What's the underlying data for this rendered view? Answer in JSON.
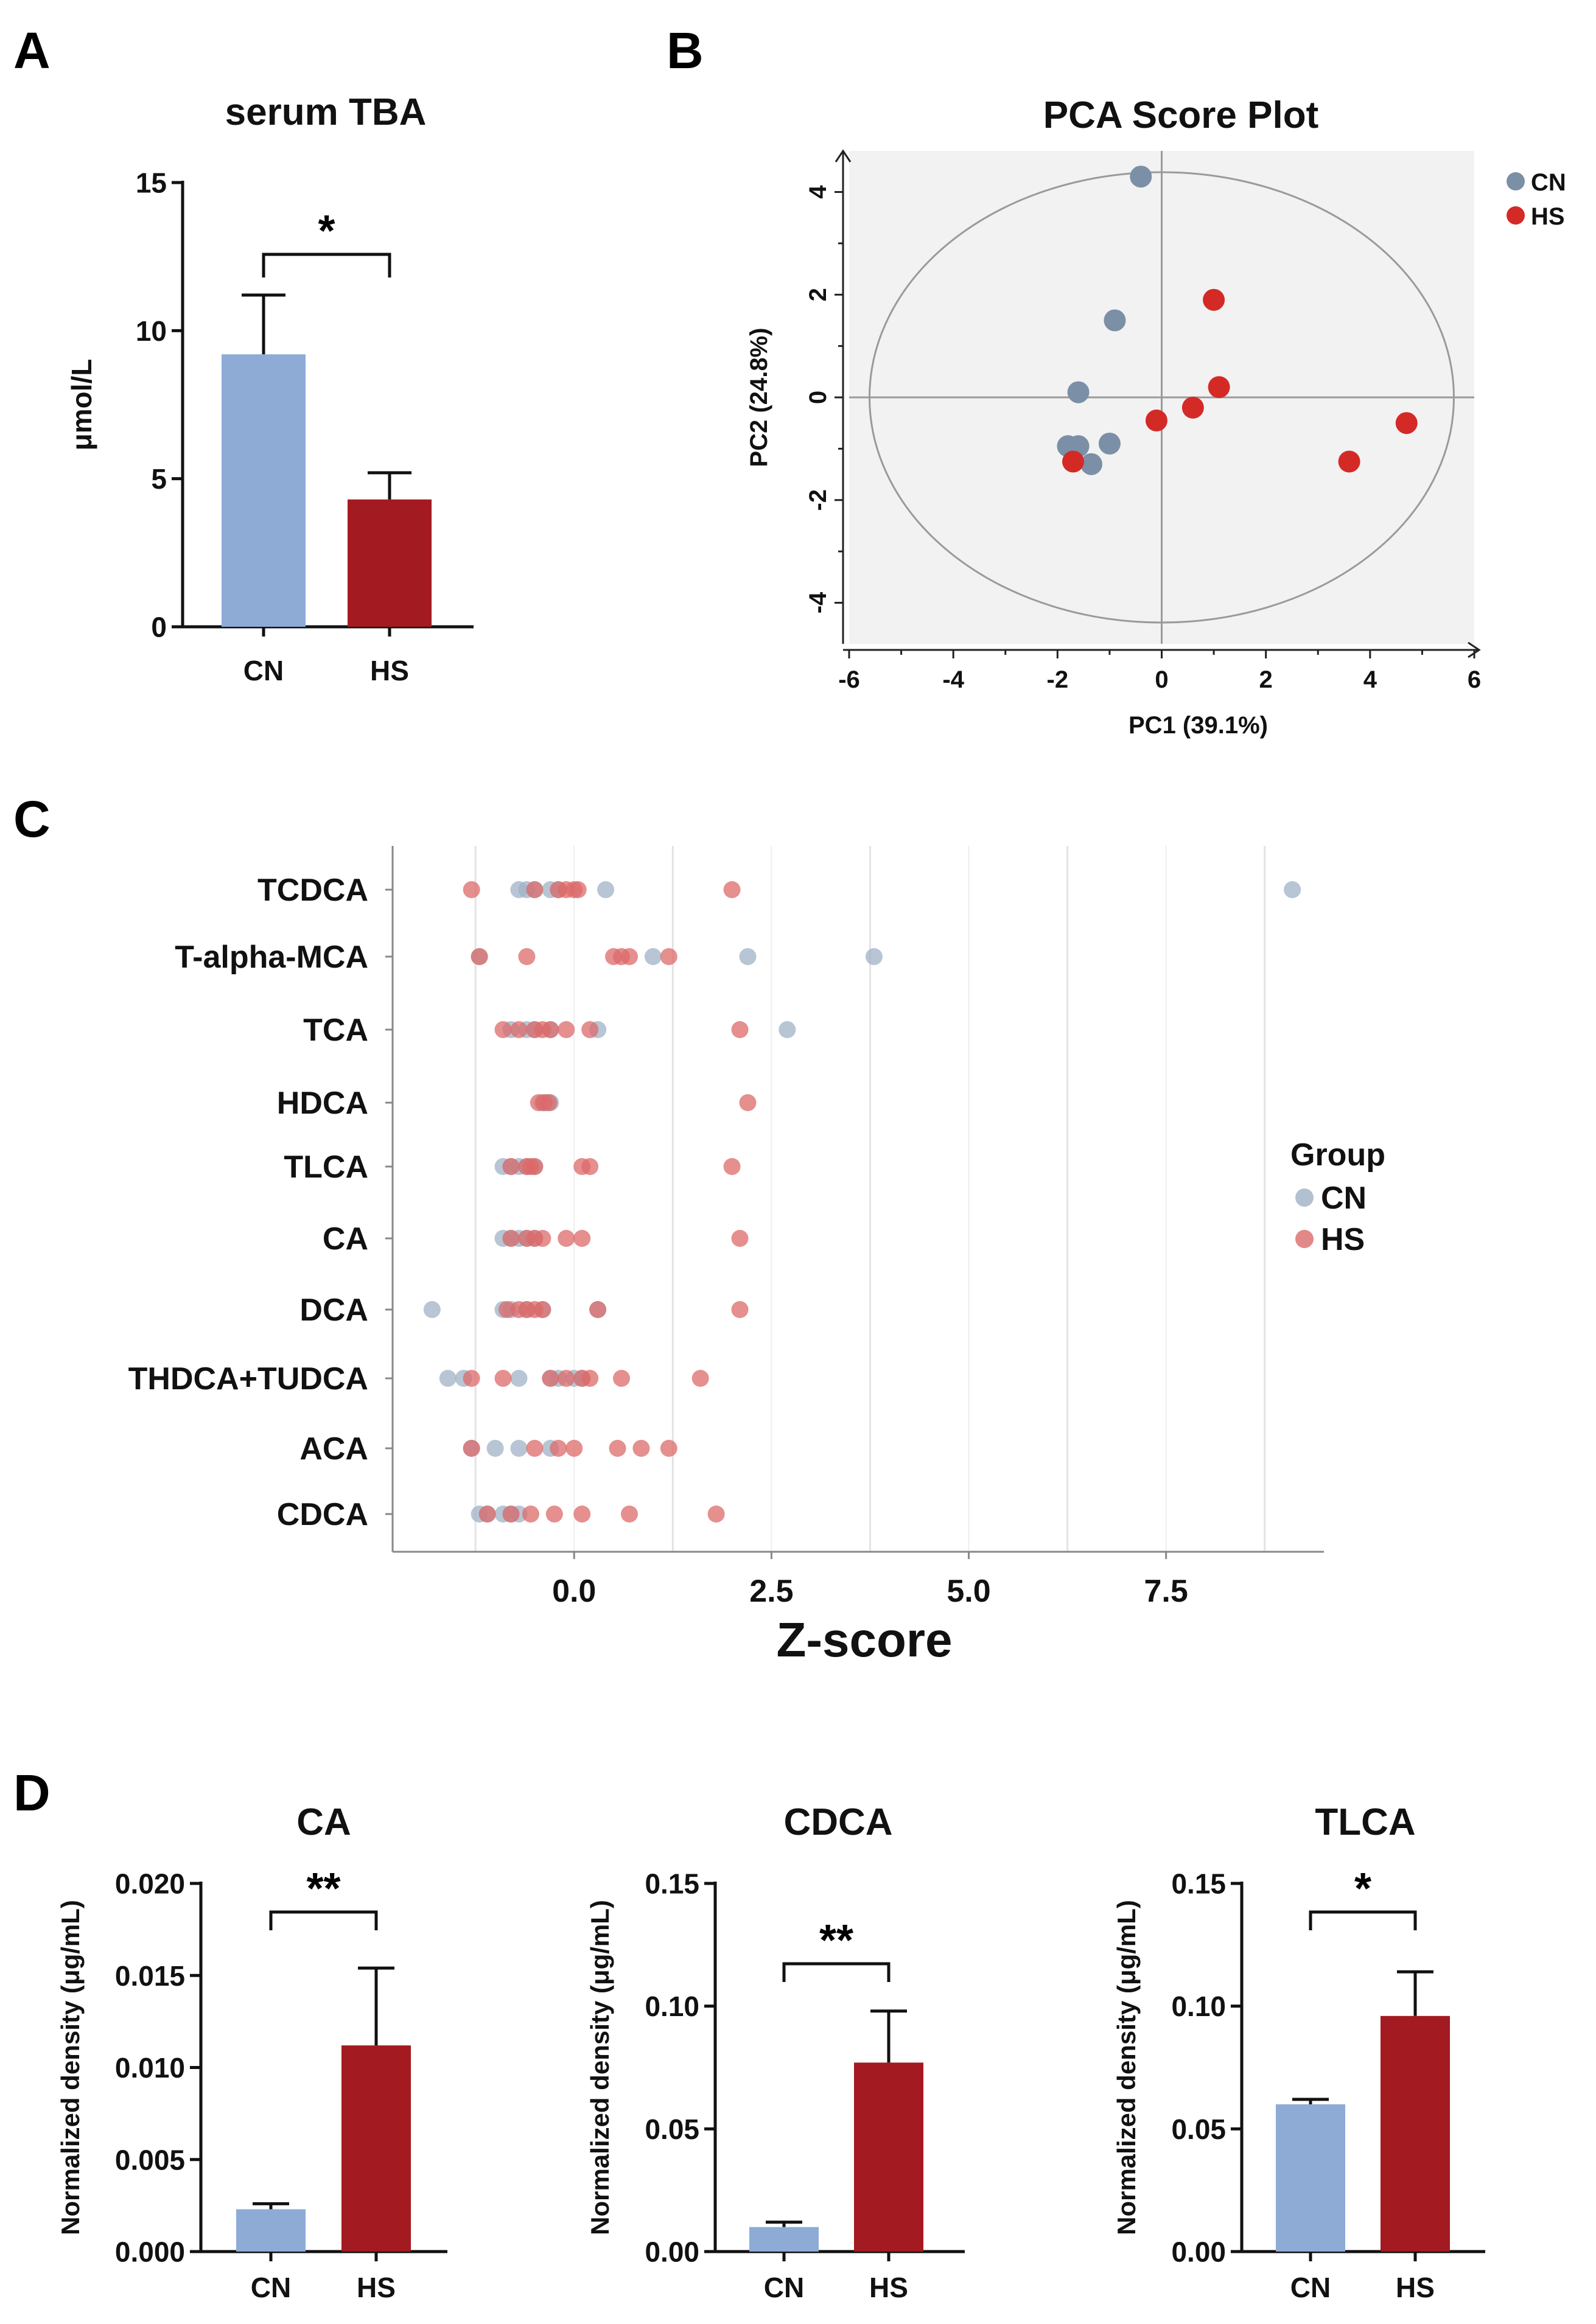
{
  "colors": {
    "cn_bar": "#8eabd6",
    "hs_bar": "#a31a20",
    "pca_cn": "#7b8fa6",
    "pca_hs": "#d42a26",
    "z_cn": "#9fb2c6",
    "z_hs": "#dc6a6a",
    "pca_bg": "#f2f2f2"
  },
  "panels": {
    "a": {
      "label": "A"
    },
    "b": {
      "label": "B"
    },
    "c": {
      "label": "C"
    },
    "d": {
      "label": "D"
    }
  },
  "chart_data": [
    {
      "id": "panel_a",
      "type": "bar",
      "title": "serum TBA",
      "ylabel": "μmol/L",
      "xlabel": "",
      "ylim": [
        0,
        15
      ],
      "yticks": [
        "0",
        "5",
        "10",
        "15"
      ],
      "categories": [
        "CN",
        "HS"
      ],
      "values": [
        9.2,
        4.3
      ],
      "errors": [
        2.0,
        0.9
      ],
      "significance": "*"
    },
    {
      "id": "panel_b",
      "type": "scatter",
      "title": "PCA Score Plot",
      "xlabel": "PC1 (39.1%)",
      "ylabel": "PC2 (24.8%)",
      "xlim": [
        -6,
        6
      ],
      "ylim": [
        -4.8,
        4.8
      ],
      "xticks": [
        "-6",
        "-4",
        "-2",
        "0",
        "2",
        "4",
        "6"
      ],
      "yticks": [
        "-4",
        "-2",
        "0",
        "2",
        "4"
      ],
      "legend": {
        "position": "top-right",
        "entries": [
          "CN",
          "HS"
        ]
      },
      "series": [
        {
          "name": "CN",
          "points": [
            [
              -0.4,
              4.3
            ],
            [
              -0.9,
              1.5
            ],
            [
              -1.6,
              0.1
            ],
            [
              -1.8,
              -0.95
            ],
            [
              -1.6,
              -0.95
            ],
            [
              -1.0,
              -0.9
            ],
            [
              -1.35,
              -1.3
            ]
          ]
        },
        {
          "name": "HS",
          "points": [
            [
              1.0,
              1.9
            ],
            [
              1.1,
              0.2
            ],
            [
              0.6,
              -0.2
            ],
            [
              -0.1,
              -0.45
            ],
            [
              -1.7,
              -1.25
            ],
            [
              3.6,
              -1.25
            ],
            [
              4.7,
              -0.5
            ]
          ]
        }
      ]
    },
    {
      "id": "panel_c",
      "type": "scatter",
      "title": "",
      "xlabel": "Z-score",
      "ylabel": "",
      "xlim": [
        -2.3,
        9.5
      ],
      "xticks": [
        "0.0",
        "2.5",
        "5.0",
        "7.5"
      ],
      "xtick_values": [
        0,
        2.5,
        5.0,
        7.5
      ],
      "legend": {
        "title": "Group",
        "position": "right",
        "entries": [
          "CN",
          "HS"
        ]
      },
      "categories": [
        "TCDCA",
        "T-alpha-MCA",
        "TCA",
        "HDCA",
        "TLCA",
        "CA",
        "DCA",
        "THDCA+TUDCA",
        "ACA",
        "CDCA"
      ],
      "series": [
        {
          "name": "CN",
          "values": [
            [
              -0.7,
              -0.6,
              -0.5,
              -0.3,
              -0.2,
              0.4,
              9.1
            ],
            [
              -1.2,
              1.0,
              2.2,
              3.8
            ],
            [
              -0.8,
              -0.6,
              -0.5,
              -0.3,
              0.3,
              2.7
            ],
            [
              -0.4,
              -0.35,
              -0.3
            ],
            [
              -0.9,
              -0.8,
              -0.7,
              -0.6,
              -0.5
            ],
            [
              -0.9,
              -0.8,
              -0.7,
              -0.6,
              -0.5
            ],
            [
              -1.8,
              -0.9,
              -0.8,
              -0.6,
              -0.4,
              0.3
            ],
            [
              -1.6,
              -1.4,
              -0.7,
              -0.3,
              -0.2,
              0.0,
              0.1
            ],
            [
              -1.3,
              -1.0,
              -0.7,
              -0.3
            ],
            [
              -1.2,
              -1.1,
              -0.9,
              -0.8,
              -0.7
            ]
          ]
        },
        {
          "name": "HS",
          "values": [
            [
              -1.3,
              -0.5,
              -0.2,
              -0.1,
              0.0,
              0.05,
              2.0
            ],
            [
              -1.2,
              -0.6,
              0.5,
              0.6,
              0.7,
              1.2
            ],
            [
              -0.9,
              -0.7,
              -0.5,
              -0.4,
              -0.3,
              -0.1,
              0.2,
              2.1
            ],
            [
              -0.45,
              -0.38,
              -0.32,
              2.2
            ],
            [
              -0.8,
              -0.6,
              -0.55,
              -0.5,
              0.1,
              0.2,
              2.0
            ],
            [
              -0.8,
              -0.6,
              -0.5,
              -0.4,
              -0.1,
              0.1,
              2.1
            ],
            [
              -0.85,
              -0.7,
              -0.6,
              -0.5,
              -0.4,
              0.3,
              2.1
            ],
            [
              -1.3,
              -0.9,
              -0.3,
              -0.1,
              0.1,
              0.2,
              0.6,
              1.6
            ],
            [
              -1.3,
              -0.5,
              -0.2,
              0.0,
              0.55,
              0.85,
              1.2
            ],
            [
              -1.1,
              -0.8,
              -0.55,
              -0.25,
              0.1,
              0.7,
              1.8
            ]
          ]
        }
      ]
    },
    {
      "id": "panel_d_ca",
      "type": "bar",
      "title": "CA",
      "ylabel": "Normalized density (μg/mL)",
      "ylim": [
        0,
        0.02
      ],
      "yticks": [
        "0.000",
        "0.005",
        "0.010",
        "0.015",
        "0.020"
      ],
      "categories": [
        "CN",
        "HS"
      ],
      "values": [
        0.0023,
        0.0112
      ],
      "errors": [
        0.0003,
        0.0042
      ],
      "significance": "**"
    },
    {
      "id": "panel_d_cdca",
      "type": "bar",
      "title": "CDCA",
      "ylabel": "Normalized density (μg/mL)",
      "ylim": [
        0,
        0.15
      ],
      "yticks": [
        "0.00",
        "0.05",
        "0.10",
        "0.15"
      ],
      "categories": [
        "CN",
        "HS"
      ],
      "values": [
        0.01,
        0.077
      ],
      "errors": [
        0.002,
        0.021
      ],
      "significance": "**"
    },
    {
      "id": "panel_d_tlca",
      "type": "bar",
      "title": "TLCA",
      "ylabel": "Normalized density (μg/mL)",
      "ylim": [
        0,
        0.15
      ],
      "yticks": [
        "0.00",
        "0.05",
        "0.10",
        "0.15"
      ],
      "categories": [
        "CN",
        "HS"
      ],
      "values": [
        0.06,
        0.096
      ],
      "errors": [
        0.002,
        0.018
      ],
      "significance": "*"
    }
  ]
}
